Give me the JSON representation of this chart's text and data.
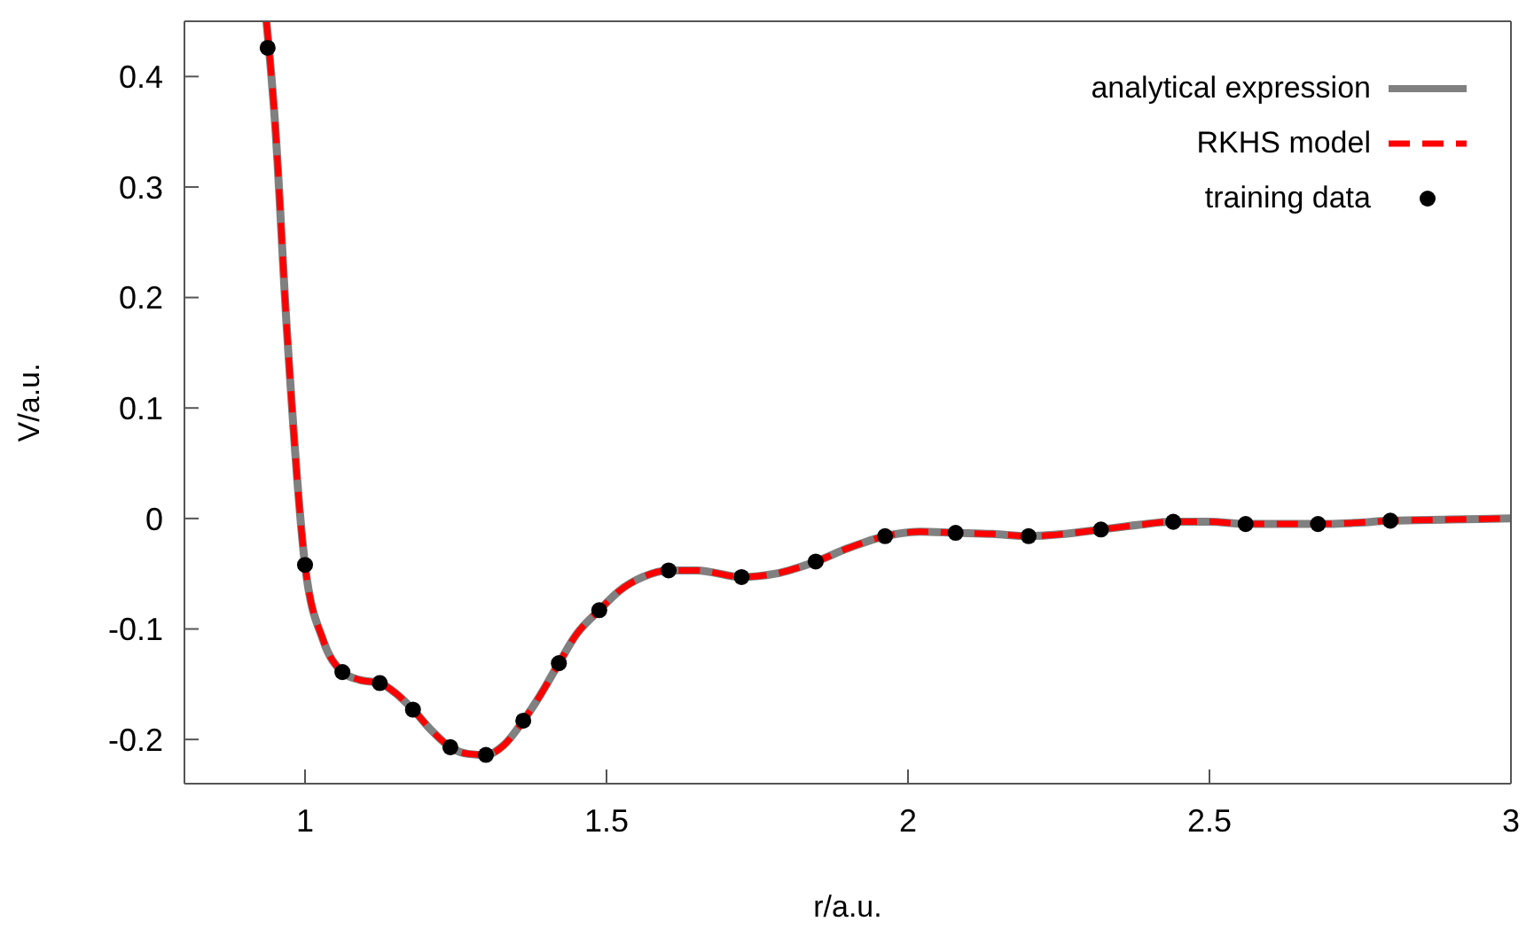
{
  "chart_data": {
    "type": "line",
    "xlabel": "r/a.u.",
    "ylabel": "V/a.u.",
    "xlim": [
      0.8,
      3
    ],
    "xticks": [
      1,
      1.5,
      2,
      2.5,
      3
    ],
    "ylim": [
      -0.24,
      0.45
    ],
    "yticks": [
      -0.2,
      -0.1,
      0,
      0.1,
      0.2,
      0.3,
      0.4
    ],
    "grid": false,
    "legend": "top right",
    "series": [
      {
        "name": "analytical expression",
        "type": "line",
        "color": "#808080",
        "line_style": "solid",
        "marker": "none",
        "x": [
          0.936,
          0.95,
          0.97,
          1.0,
          1.03,
          1.062,
          1.09,
          1.124,
          1.15,
          1.179,
          1.21,
          1.241,
          1.27,
          1.3,
          1.33,
          1.362,
          1.39,
          1.421,
          1.45,
          1.488,
          1.52,
          1.56,
          1.603,
          1.65,
          1.724,
          1.78,
          1.847,
          1.9,
          1.962,
          2.02,
          2.079,
          2.14,
          2.2,
          2.26,
          2.32,
          2.38,
          2.44,
          2.5,
          2.56,
          2.62,
          2.68,
          2.74,
          2.8,
          2.9,
          3.0
        ],
        "values": [
          0.45,
          0.36,
          0.17,
          -0.042,
          -0.11,
          -0.139,
          -0.146,
          -0.149,
          -0.158,
          -0.173,
          -0.192,
          -0.207,
          -0.213,
          -0.214,
          -0.205,
          -0.183,
          -0.16,
          -0.131,
          -0.105,
          -0.083,
          -0.066,
          -0.053,
          -0.047,
          -0.047,
          -0.053,
          -0.05,
          -0.039,
          -0.027,
          -0.016,
          -0.012,
          -0.013,
          -0.014,
          -0.016,
          -0.014,
          -0.01,
          -0.006,
          -0.003,
          -0.003,
          -0.005,
          -0.005,
          -0.005,
          -0.004,
          -0.002,
          -0.001,
          0
        ]
      },
      {
        "name": "RKHS model",
        "type": "line",
        "color": "#ff0000",
        "line_style": "dashed",
        "marker": "none",
        "x": [
          0.936,
          0.95,
          0.97,
          1.0,
          1.03,
          1.062,
          1.09,
          1.124,
          1.15,
          1.179,
          1.21,
          1.241,
          1.27,
          1.3,
          1.33,
          1.362,
          1.39,
          1.421,
          1.45,
          1.488,
          1.52,
          1.56,
          1.603,
          1.65,
          1.724,
          1.78,
          1.847,
          1.9,
          1.962,
          2.02,
          2.079,
          2.14,
          2.2,
          2.26,
          2.32,
          2.38,
          2.44,
          2.5,
          2.56,
          2.62,
          2.68,
          2.74,
          2.8,
          2.9,
          3.0
        ],
        "values": [
          0.45,
          0.36,
          0.17,
          -0.042,
          -0.11,
          -0.139,
          -0.146,
          -0.149,
          -0.158,
          -0.173,
          -0.192,
          -0.207,
          -0.213,
          -0.214,
          -0.205,
          -0.183,
          -0.16,
          -0.131,
          -0.105,
          -0.083,
          -0.066,
          -0.053,
          -0.047,
          -0.047,
          -0.053,
          -0.05,
          -0.039,
          -0.027,
          -0.016,
          -0.012,
          -0.013,
          -0.014,
          -0.016,
          -0.014,
          -0.01,
          -0.006,
          -0.003,
          -0.003,
          -0.005,
          -0.005,
          -0.005,
          -0.004,
          -0.002,
          -0.001,
          0
        ]
      },
      {
        "name": "training data",
        "type": "scatter",
        "color": "#000000",
        "marker": "circle",
        "x": [
          0.938,
          1.0,
          1.062,
          1.124,
          1.179,
          1.241,
          1.3,
          1.362,
          1.421,
          1.488,
          1.603,
          1.724,
          1.847,
          1.962,
          2.079,
          2.2,
          2.32,
          2.44,
          2.56,
          2.68,
          2.8
        ],
        "values": [
          0.426,
          -0.042,
          -0.139,
          -0.149,
          -0.173,
          -0.207,
          -0.214,
          -0.183,
          -0.131,
          -0.083,
          -0.047,
          -0.053,
          -0.039,
          -0.016,
          -0.013,
          -0.016,
          -0.01,
          -0.003,
          -0.005,
          -0.005,
          -0.002
        ]
      }
    ]
  }
}
